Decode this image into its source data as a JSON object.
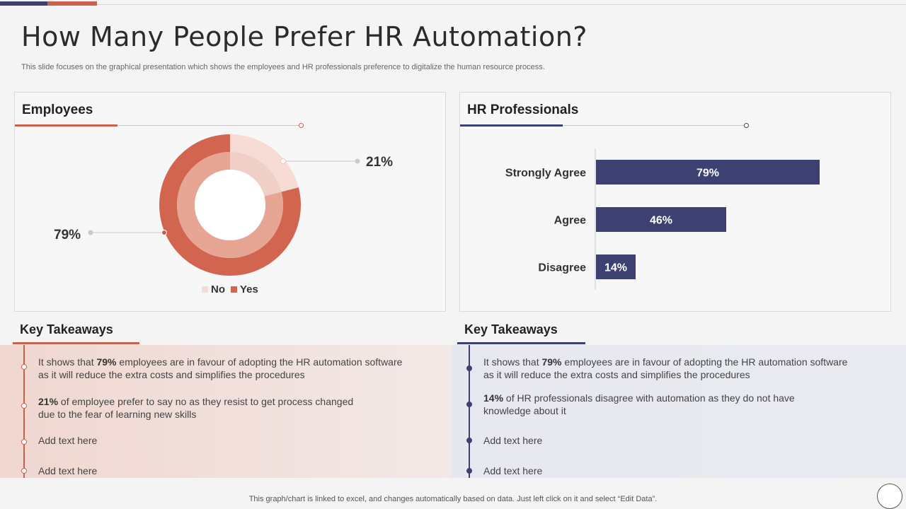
{
  "page": {
    "title": "How Many People Prefer HR Automation?",
    "subtitle": "This slide focuses on the graphical presentation which shows the employees and HR professionals preference to digitalize the human resource process.",
    "footer": "This graph/chart is linked to excel,  and changes automatically based on data. Just left click on it and select “Edit Data”."
  },
  "colors": {
    "navy": "#3d4171",
    "terracotta": "#c8634b",
    "donut_yes": "#d2654f",
    "donut_no": "#f6dcd5"
  },
  "employees": {
    "title": "Employees",
    "label_no": "21%",
    "label_yes": "79%"
  },
  "hr": {
    "title": "HR Professionals"
  },
  "chart_data": [
    {
      "type": "pie",
      "title": "Employees",
      "categories": [
        "No",
        "Yes"
      ],
      "values": [
        21,
        79
      ],
      "legend": "bottom"
    },
    {
      "type": "bar",
      "orientation": "horizontal",
      "title": "HR Professionals",
      "categories": [
        "Strongly Agree",
        "Agree",
        "Disagree"
      ],
      "values": [
        79,
        46,
        14
      ],
      "value_labels": [
        "79%",
        "46%",
        "14%"
      ],
      "xlim": [
        0,
        100
      ]
    }
  ],
  "left_takeaways": {
    "title": "Key Takeaways",
    "items": [
      {
        "bold": "79%",
        "pre": "It shows that ",
        "post": " employees are in favour of adopting the HR automation software",
        "line2": "as it will reduce the extra costs and simplifies the procedures"
      },
      {
        "bold": "21%",
        "pre": "",
        "post": " of employee prefer to say no as they resist to get process changed",
        "line2": "due to the fear of learning  new skills"
      },
      {
        "text": "Add text here"
      },
      {
        "text": "Add text here"
      }
    ]
  },
  "right_takeaways": {
    "title": "Key Takeaways",
    "items": [
      {
        "bold": "79%",
        "pre": "It shows that ",
        "post": " employees are in favour of adopting the HR automation software",
        "line2": "as it will reduce the extra costs and simplifies the procedures"
      },
      {
        "bold": "14%",
        "pre": "",
        "post": " of HR professionals disagree with automation as they do not have",
        "line2": "knowledge about it"
      },
      {
        "text": "Add text here"
      },
      {
        "text": "Add text here"
      }
    ]
  }
}
